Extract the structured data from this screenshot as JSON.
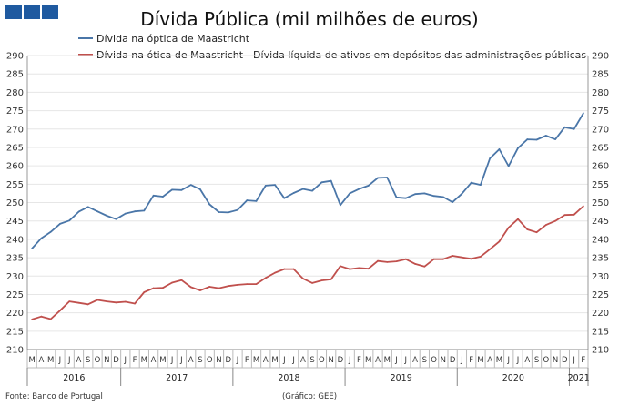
{
  "chart_data": {
    "type": "line",
    "title": "Dívida Pública (mil milhões de euros)",
    "ylim": [
      210,
      290
    ],
    "yticks": [
      210,
      215,
      220,
      225,
      230,
      235,
      240,
      245,
      250,
      255,
      260,
      265,
      270,
      275,
      280,
      285,
      290
    ],
    "categories": [
      "M",
      "A",
      "M",
      "J",
      "J",
      "A",
      "S",
      "O",
      "N",
      "D",
      "J",
      "F",
      "M",
      "A",
      "M",
      "J",
      "J",
      "A",
      "S",
      "O",
      "N",
      "D",
      "J",
      "F",
      "M",
      "A",
      "M",
      "J",
      "J",
      "A",
      "S",
      "O",
      "N",
      "D",
      "J",
      "F",
      "M",
      "A",
      "M",
      "J",
      "J",
      "A",
      "S",
      "O",
      "N",
      "D",
      "J",
      "F",
      "M",
      "A",
      "M",
      "J",
      "J",
      "A",
      "S",
      "O",
      "N",
      "D",
      "J",
      "F"
    ],
    "years": [
      {
        "label": "2016",
        "start": 0,
        "end": 9
      },
      {
        "label": "2017",
        "start": 10,
        "end": 21
      },
      {
        "label": "2018",
        "start": 22,
        "end": 33
      },
      {
        "label": "2019",
        "start": 34,
        "end": 45
      },
      {
        "label": "2020",
        "start": 46,
        "end": 57
      },
      {
        "label": "2021",
        "start": 58,
        "end": 59
      }
    ],
    "series": [
      {
        "name": "Dívida na óptica de Maastricht",
        "color": "#4a76a8",
        "values": [
          237.5,
          240.3,
          242.0,
          244.2,
          245.1,
          247.5,
          248.8,
          247.6,
          246.4,
          245.5,
          247.0,
          247.6,
          247.8,
          251.9,
          251.6,
          253.5,
          253.4,
          254.8,
          253.6,
          249.5,
          247.4,
          247.3,
          248.0,
          250.6,
          250.4,
          254.6,
          254.8,
          251.2,
          252.6,
          253.7,
          253.2,
          255.5,
          255.9,
          249.3,
          252.5,
          253.7,
          254.6,
          256.7,
          256.8,
          251.4,
          251.2,
          252.3,
          252.5,
          251.8,
          251.5,
          250.1,
          252.4,
          255.4,
          254.8,
          262.0,
          264.5,
          259.9,
          264.8,
          267.2,
          267.1,
          268.2,
          267.2,
          270.5,
          270.0,
          274.3
        ]
      },
      {
        "name": "Dívida na ótica de Maastricht - Dívida líquida de ativos em depósitos das administrações públicas",
        "color": "#c0504d",
        "values": [
          218.2,
          219.0,
          218.3,
          220.6,
          223.1,
          222.7,
          222.3,
          223.5,
          223.1,
          222.8,
          223.0,
          222.5,
          225.6,
          226.7,
          226.8,
          228.2,
          228.9,
          227.0,
          226.1,
          227.1,
          226.7,
          227.3,
          227.6,
          227.8,
          227.8,
          229.5,
          230.9,
          231.9,
          231.9,
          229.3,
          228.1,
          228.8,
          229.1,
          232.7,
          231.9,
          232.2,
          232.0,
          234.1,
          233.8,
          234.0,
          234.6,
          233.3,
          232.6,
          234.6,
          234.6,
          235.5,
          235.1,
          234.7,
          235.3,
          237.3,
          239.4,
          243.2,
          245.5,
          242.7,
          241.9,
          243.9,
          245.0,
          246.6,
          246.7,
          249.0
        ]
      }
    ],
    "footer_left": "Fonte: Banco de Portugal",
    "footer_center": "(Gráfico: GEE)"
  },
  "logo": {
    "color": "#1f5aa0"
  }
}
